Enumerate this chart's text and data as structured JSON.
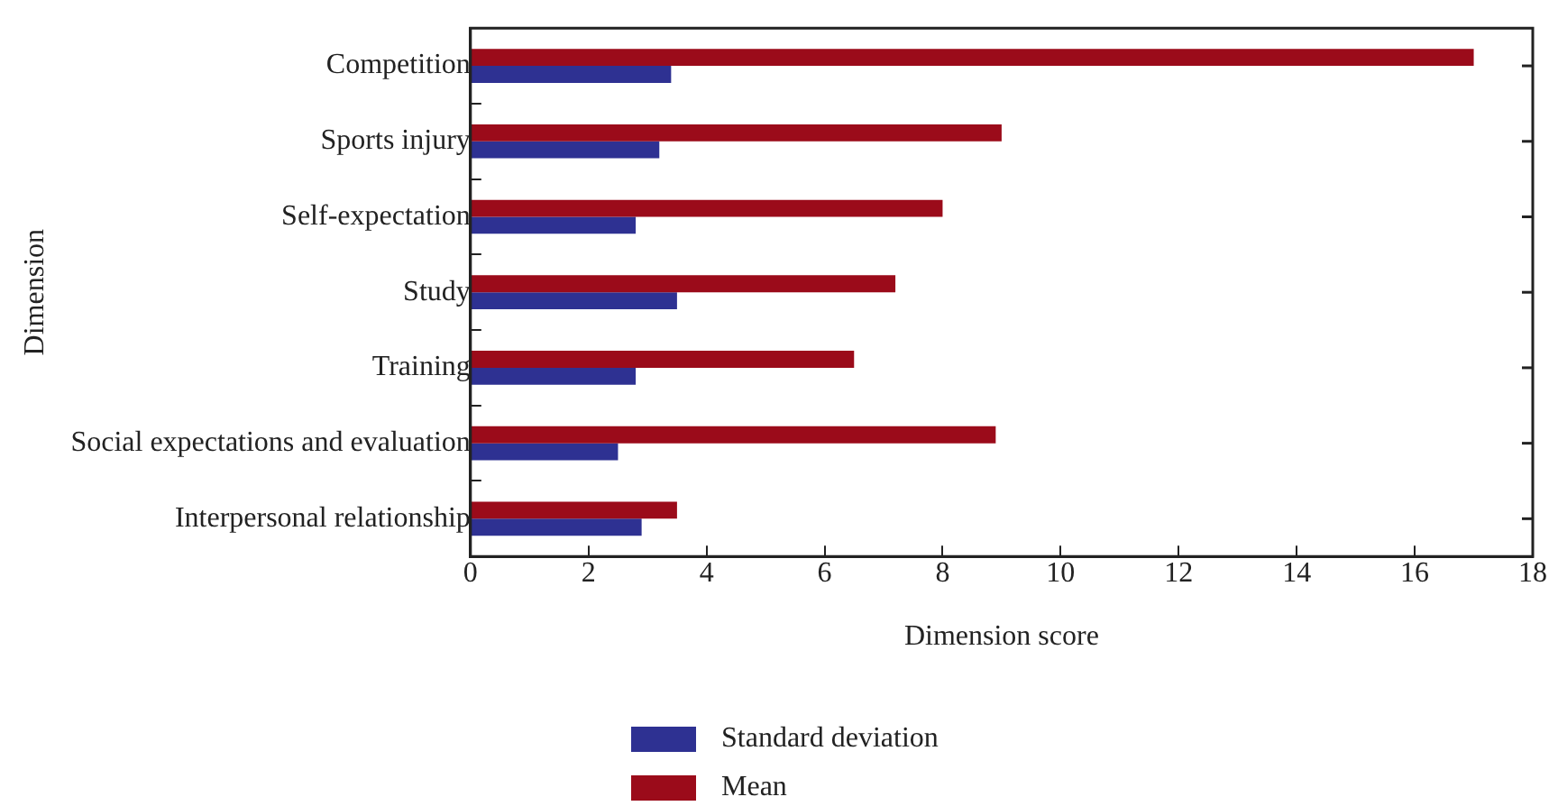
{
  "chart_data": {
    "type": "bar",
    "orientation": "horizontal",
    "xlabel": "Dimension score",
    "ylabel": "Dimension",
    "categories": [
      "Competition",
      "Sports injury",
      "Self-expectation",
      "Study",
      "Training",
      "Social expectations and evaluation",
      "Interpersonal relationship"
    ],
    "series": [
      {
        "name": "Standard deviation",
        "color": "#2e3192",
        "values": [
          3.4,
          3.2,
          2.8,
          3.5,
          2.8,
          2.5,
          2.9
        ]
      },
      {
        "name": "Mean",
        "color": "#9b0b1a",
        "values": [
          17.0,
          9.0,
          8.0,
          7.2,
          6.5,
          8.9,
          3.5
        ]
      }
    ],
    "xlim": [
      0,
      18
    ],
    "xticks": [
      0,
      2,
      4,
      6,
      8,
      10,
      12,
      14,
      16,
      18
    ],
    "grid": false,
    "legend": "bottom"
  }
}
